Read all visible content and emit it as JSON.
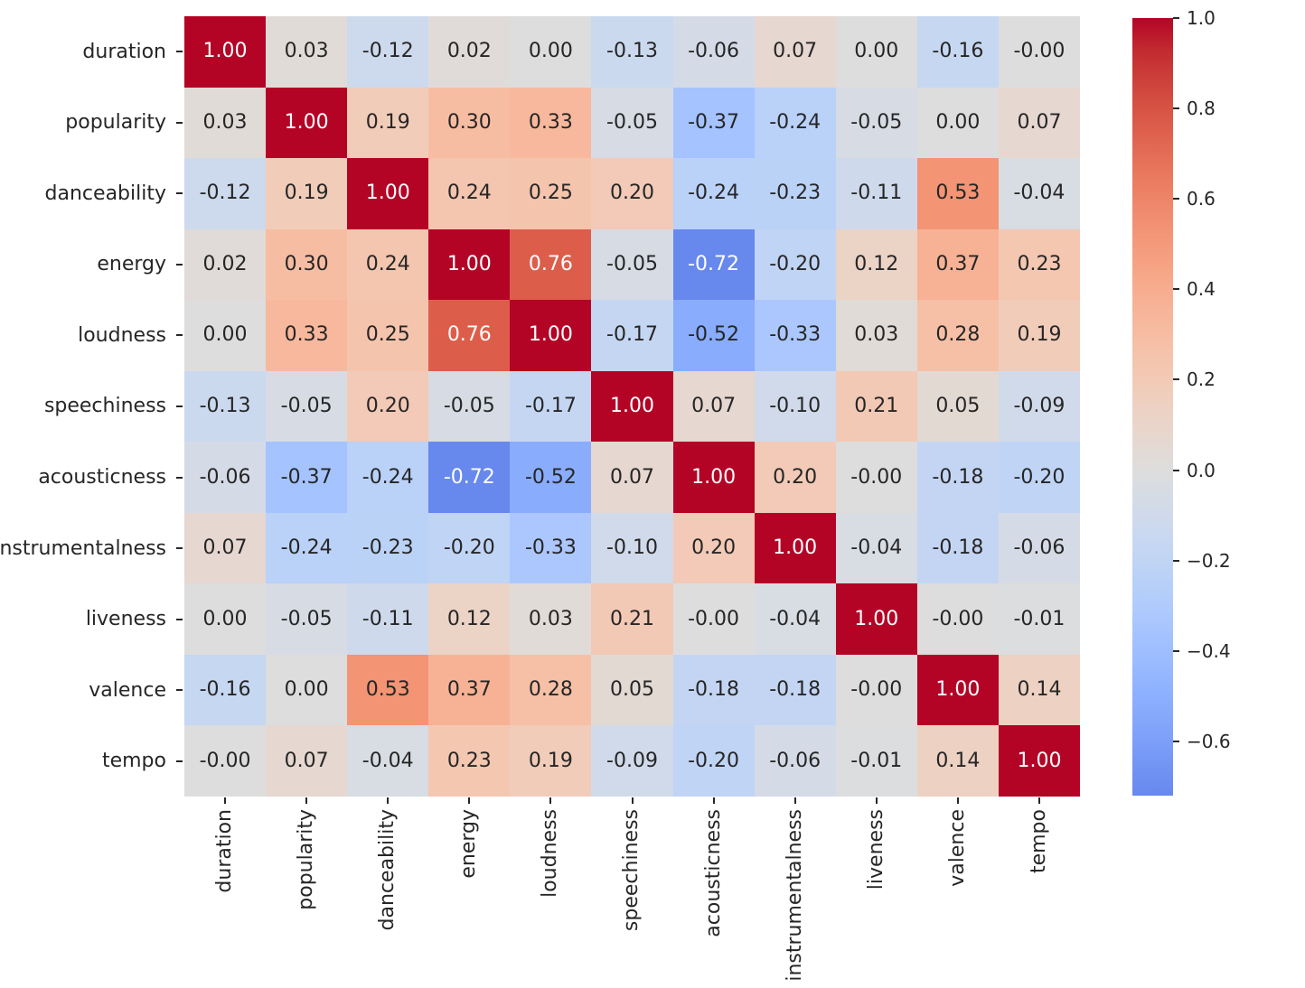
{
  "chart_data": {
    "type": "heatmap",
    "title": "",
    "xlabel": "",
    "ylabel": "",
    "categories": [
      "duration",
      "popularity",
      "danceability",
      "energy",
      "loudness",
      "speechiness",
      "acousticness",
      "instrumentalness",
      "liveness",
      "valence",
      "tempo"
    ],
    "matrix": [
      [
        "1.00",
        "0.03",
        "-0.12",
        "0.02",
        "0.00",
        "-0.13",
        "-0.06",
        "0.07",
        "0.00",
        "-0.16",
        "-0.00"
      ],
      [
        "0.03",
        "1.00",
        "0.19",
        "0.30",
        "0.33",
        "-0.05",
        "-0.37",
        "-0.24",
        "-0.05",
        "0.00",
        "0.07"
      ],
      [
        "-0.12",
        "0.19",
        "1.00",
        "0.24",
        "0.25",
        "0.20",
        "-0.24",
        "-0.23",
        "-0.11",
        "0.53",
        "-0.04"
      ],
      [
        "0.02",
        "0.30",
        "0.24",
        "1.00",
        "0.76",
        "-0.05",
        "-0.72",
        "-0.20",
        "0.12",
        "0.37",
        "0.23"
      ],
      [
        "0.00",
        "0.33",
        "0.25",
        "0.76",
        "1.00",
        "-0.17",
        "-0.52",
        "-0.33",
        "0.03",
        "0.28",
        "0.19"
      ],
      [
        "-0.13",
        "-0.05",
        "0.20",
        "-0.05",
        "-0.17",
        "1.00",
        "0.07",
        "-0.10",
        "0.21",
        "0.05",
        "-0.09"
      ],
      [
        "-0.06",
        "-0.37",
        "-0.24",
        "-0.72",
        "-0.52",
        "0.07",
        "1.00",
        "0.20",
        "-0.00",
        "-0.18",
        "-0.20"
      ],
      [
        "0.07",
        "-0.24",
        "-0.23",
        "-0.20",
        "-0.33",
        "-0.10",
        "0.20",
        "1.00",
        "-0.04",
        "-0.18",
        "-0.06"
      ],
      [
        "0.00",
        "-0.05",
        "-0.11",
        "0.12",
        "0.03",
        "0.21",
        "-0.00",
        "-0.04",
        "1.00",
        "-0.00",
        "-0.01"
      ],
      [
        "-0.16",
        "0.00",
        "0.53",
        "0.37",
        "0.28",
        "0.05",
        "-0.18",
        "-0.18",
        "-0.00",
        "1.00",
        "0.14"
      ],
      [
        "-0.00",
        "0.07",
        "-0.04",
        "0.23",
        "0.19",
        "-0.09",
        "-0.20",
        "-0.06",
        "-0.01",
        "0.14",
        "1.00"
      ]
    ],
    "colormap": "coolwarm",
    "cell_value_range": [
      -1,
      1
    ],
    "grid": false,
    "annotations": true,
    "annotation_colors": {
      "dark": "#262626",
      "light": "#ffffff"
    },
    "label_color": "#262626",
    "background": "#ffffff",
    "diag_color": "#b40426",
    "colorbar": {
      "position": "right",
      "vmin": -0.72,
      "vmax": 1.0,
      "ticks": [
        1.0,
        0.8,
        0.6,
        0.4,
        0.2,
        0.0,
        -0.2,
        -0.4,
        -0.6
      ],
      "tick_labels": [
        "1.0",
        "0.8",
        "0.6",
        "0.4",
        "0.2",
        "0.0",
        "−0.2",
        "−0.4",
        "−0.6"
      ]
    }
  }
}
